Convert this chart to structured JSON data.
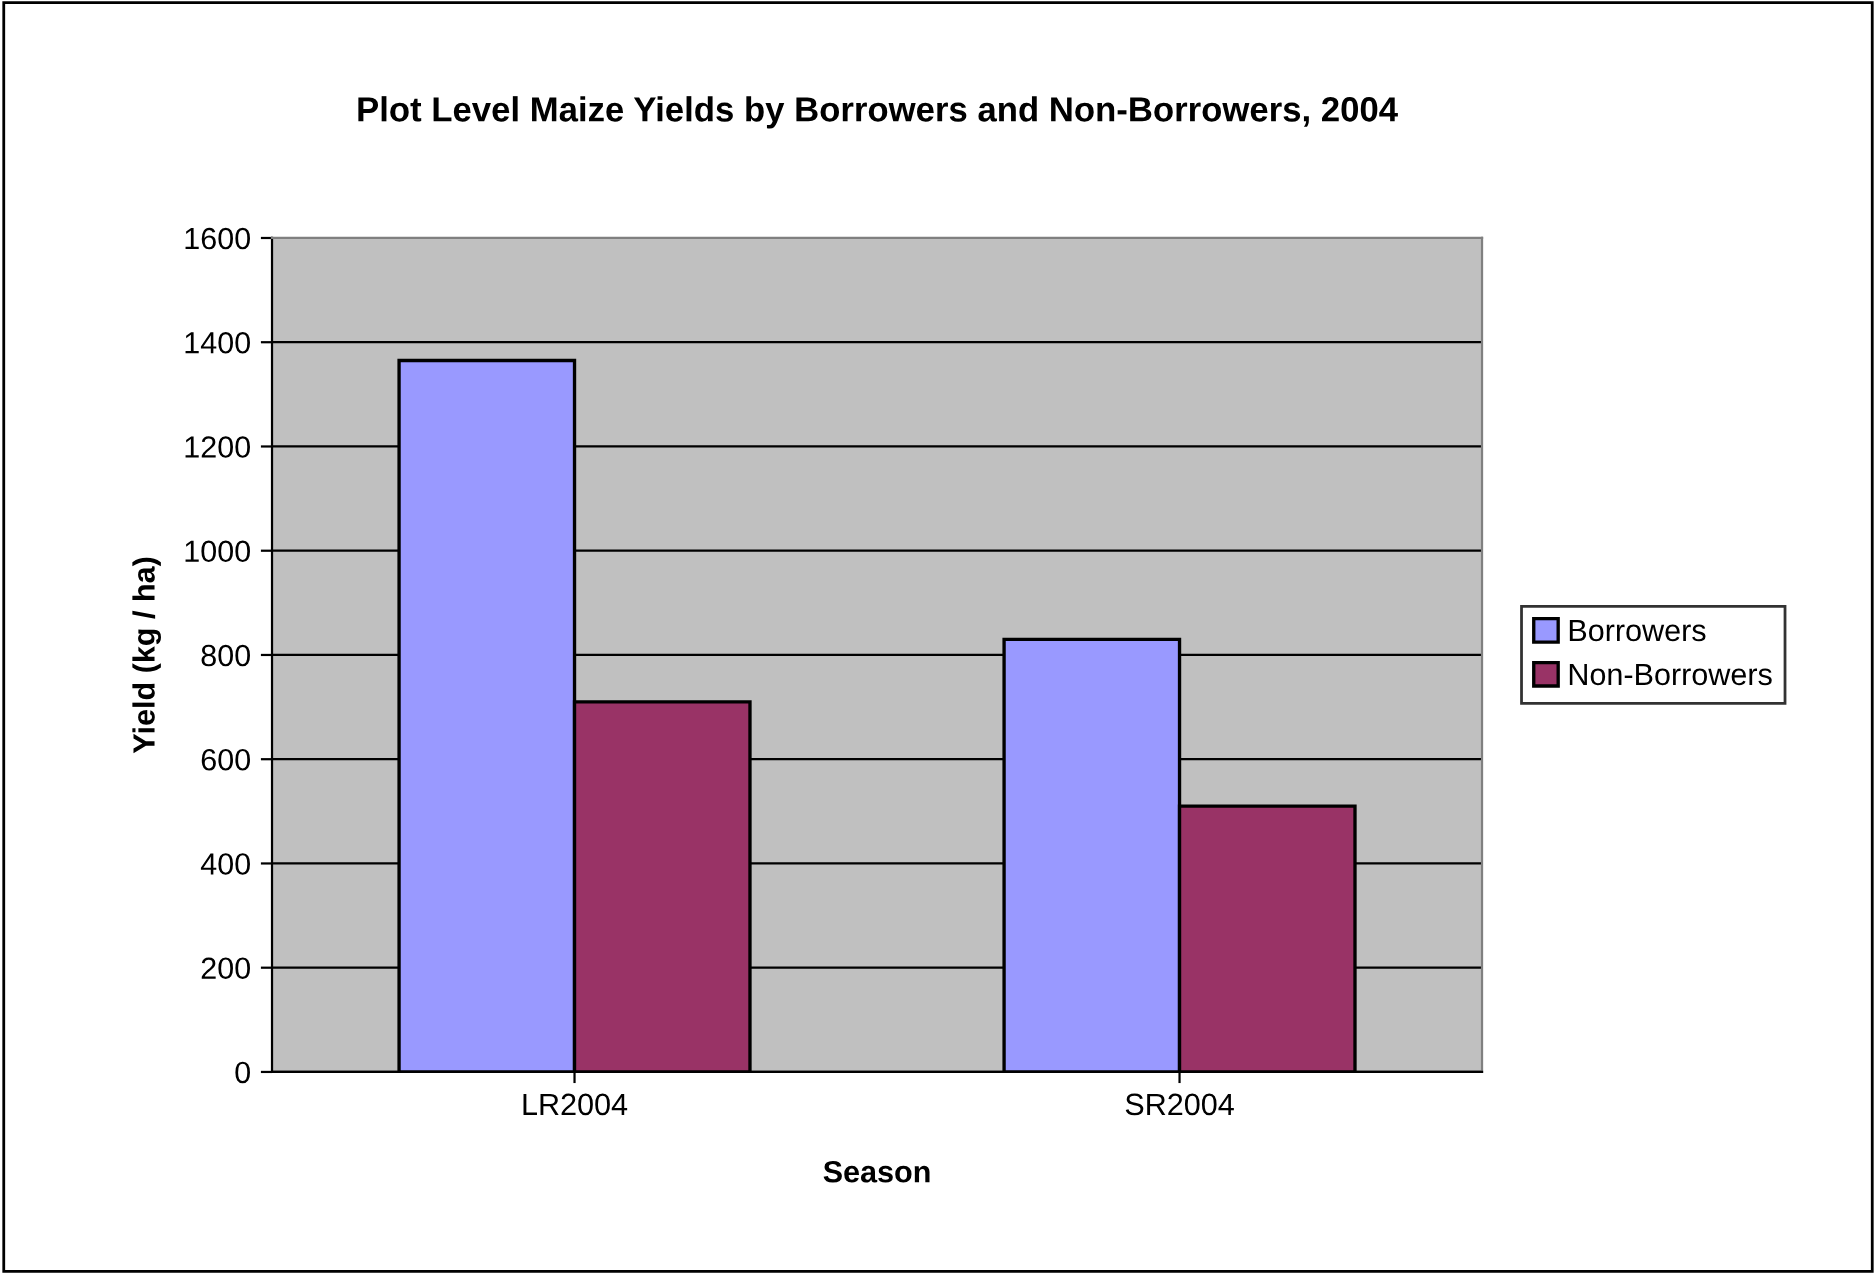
{
  "chart_data": {
    "type": "bar",
    "title": "Plot Level Maize Yields by Borrowers and Non-Borrowers, 2004",
    "xlabel": "Season",
    "ylabel": "Yield (kg / ha)",
    "categories": [
      "LR2004",
      "SR2004"
    ],
    "series": [
      {
        "name": "Borrowers",
        "color": "#9999ff",
        "values": [
          1365,
          830
        ]
      },
      {
        "name": "Non-Borrowers",
        "color": "#993366",
        "values": [
          710,
          510
        ]
      }
    ],
    "ylim": [
      0,
      1600
    ],
    "yticks": [
      0,
      200,
      400,
      600,
      800,
      1000,
      1200,
      1400,
      1600
    ],
    "grid": "y",
    "legend": "right"
  }
}
